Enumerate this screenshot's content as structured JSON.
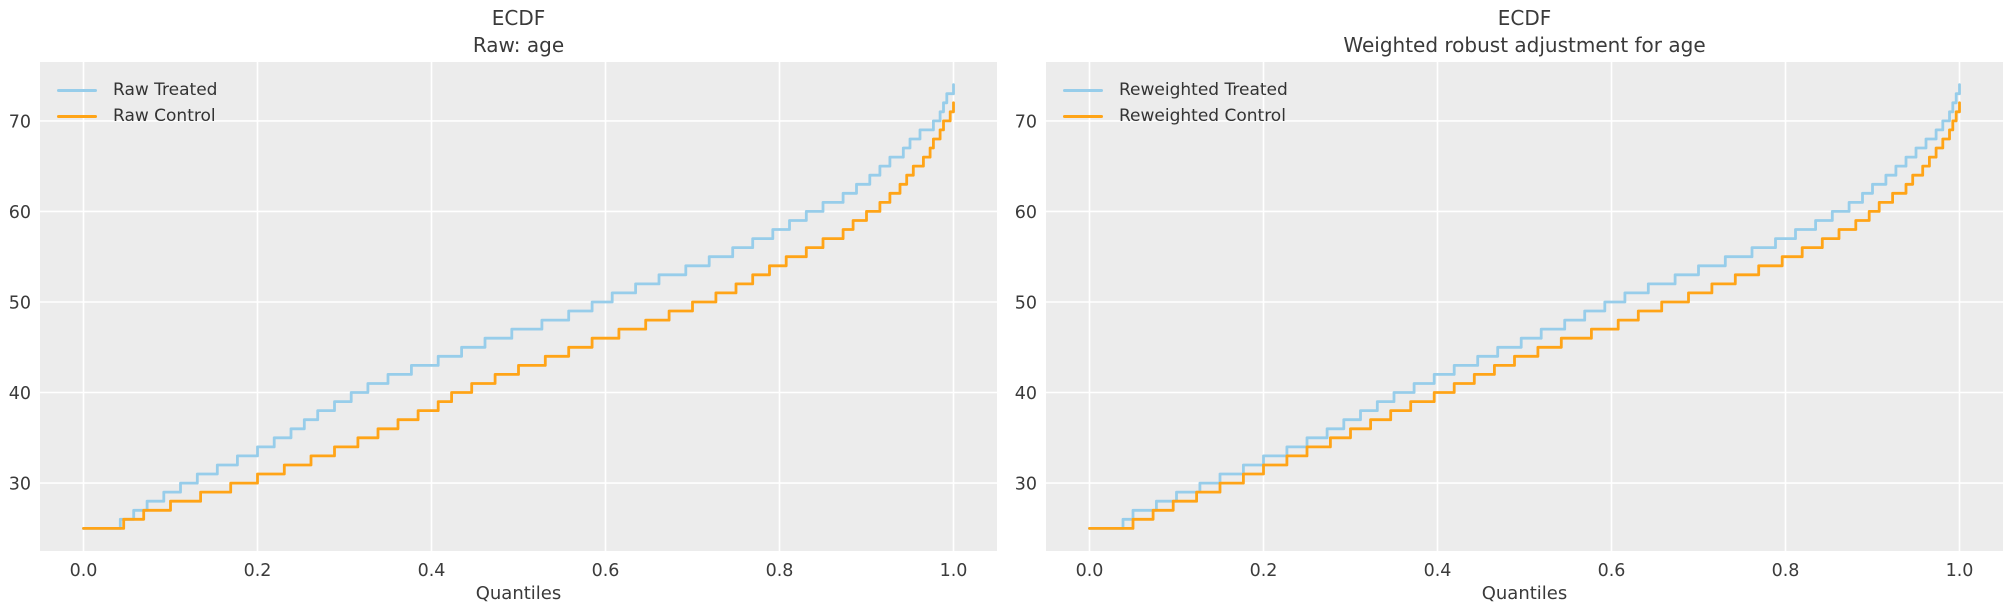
{
  "figure": {
    "background": "#ffffff",
    "plot_bg": "#ececec",
    "grid_color": "#ffffff",
    "text_color": "#3a3a3a"
  },
  "chart_data": [
    {
      "type": "line",
      "subtype": "ecdf-quantile-step",
      "title_line1": "ECDF",
      "title_line2": "Raw: age",
      "xlabel": "Quantiles",
      "ylabel": "",
      "x_ticks": [
        "0.0",
        "0.2",
        "0.4",
        "0.6",
        "0.8",
        "1.0"
      ],
      "x_tick_values": [
        0.0,
        0.2,
        0.4,
        0.6,
        0.8,
        1.0
      ],
      "y_ticks": [
        "30",
        "40",
        "50",
        "60",
        "70"
      ],
      "y_tick_values": [
        30,
        40,
        50,
        60,
        70
      ],
      "xlim": [
        -0.05,
        1.05
      ],
      "ylim": [
        22.5,
        76.5
      ],
      "grid": true,
      "legend_position": "upper-left",
      "plot_bg": "#ececec",
      "grid_color": "#ffffff",
      "series": [
        {
          "name": "Raw Treated",
          "color": "#97cdea",
          "points": [
            [
              0,
              25
            ],
            [
              0.03,
              25
            ],
            [
              0.05,
              26
            ],
            [
              0.07,
              27.5
            ],
            [
              0.1,
              29
            ],
            [
              0.13,
              30.5
            ],
            [
              0.16,
              31.8
            ],
            [
              0.2,
              33.5
            ],
            [
              0.24,
              35.8
            ],
            [
              0.28,
              38.2
            ],
            [
              0.32,
              40.3
            ],
            [
              0.36,
              42
            ],
            [
              0.4,
              43.3
            ],
            [
              0.44,
              44.8
            ],
            [
              0.48,
              46.2
            ],
            [
              0.52,
              47.4
            ],
            [
              0.56,
              48.6
            ],
            [
              0.6,
              50.2
            ],
            [
              0.64,
              51.8
            ],
            [
              0.68,
              53.2
            ],
            [
              0.72,
              54.6
            ],
            [
              0.76,
              56.2
            ],
            [
              0.8,
              58
            ],
            [
              0.84,
              60
            ],
            [
              0.87,
              61.5
            ],
            [
              0.9,
              63.3
            ],
            [
              0.92,
              65
            ],
            [
              0.94,
              66.5
            ],
            [
              0.96,
              68.5
            ],
            [
              0.98,
              70
            ],
            [
              0.99,
              72
            ],
            [
              1.0,
              74.3
            ]
          ]
        },
        {
          "name": "Raw Control",
          "color": "#ffa417",
          "points": [
            [
              0,
              25
            ],
            [
              0.04,
              25
            ],
            [
              0.05,
              26
            ],
            [
              0.09,
              27.2
            ],
            [
              0.13,
              28.4
            ],
            [
              0.17,
              29.6
            ],
            [
              0.2,
              30.6
            ],
            [
              0.24,
              31.8
            ],
            [
              0.28,
              33.2
            ],
            [
              0.32,
              34.8
            ],
            [
              0.36,
              36.5
            ],
            [
              0.4,
              38.2
            ],
            [
              0.43,
              40
            ],
            [
              0.48,
              41.8
            ],
            [
              0.52,
              43.2
            ],
            [
              0.56,
              44.6
            ],
            [
              0.6,
              46.1
            ],
            [
              0.64,
              47.4
            ],
            [
              0.68,
              48.8
            ],
            [
              0.72,
              50.3
            ],
            [
              0.76,
              52
            ],
            [
              0.8,
              54.2
            ],
            [
              0.84,
              56
            ],
            [
              0.87,
              57.5
            ],
            [
              0.9,
              59.7
            ],
            [
              0.92,
              61
            ],
            [
              0.94,
              63
            ],
            [
              0.96,
              65.2
            ],
            [
              0.98,
              68
            ],
            [
              0.99,
              69.8
            ],
            [
              1.0,
              72.2
            ]
          ]
        }
      ]
    },
    {
      "type": "line",
      "subtype": "ecdf-quantile-step",
      "title_line1": "ECDF",
      "title_line2": "Weighted robust adjustment for age",
      "xlabel": "Quantiles",
      "ylabel": "",
      "x_ticks": [
        "0.0",
        "0.2",
        "0.4",
        "0.6",
        "0.8",
        "1.0"
      ],
      "x_tick_values": [
        0.0,
        0.2,
        0.4,
        0.6,
        0.8,
        1.0
      ],
      "y_ticks": [
        "30",
        "40",
        "50",
        "60",
        "70"
      ],
      "y_tick_values": [
        30,
        40,
        50,
        60,
        70
      ],
      "xlim": [
        -0.05,
        1.05
      ],
      "ylim": [
        22.5,
        76.5
      ],
      "grid": true,
      "legend_position": "upper-left",
      "plot_bg": "#ececec",
      "grid_color": "#ffffff",
      "series": [
        {
          "name": "Reweighted Treated",
          "color": "#97cdea",
          "points": [
            [
              0,
              25
            ],
            [
              0.03,
              25
            ],
            [
              0.05,
              26.5
            ],
            [
              0.1,
              28.5
            ],
            [
              0.15,
              30.5
            ],
            [
              0.2,
              32.5
            ],
            [
              0.25,
              34.5
            ],
            [
              0.3,
              37
            ],
            [
              0.35,
              39.5
            ],
            [
              0.4,
              41.8
            ],
            [
              0.45,
              43.8
            ],
            [
              0.5,
              45.7
            ],
            [
              0.55,
              47.8
            ],
            [
              0.6,
              50
            ],
            [
              0.65,
              51.8
            ],
            [
              0.7,
              53.5
            ],
            [
              0.75,
              55.2
            ],
            [
              0.8,
              57
            ],
            [
              0.85,
              59.3
            ],
            [
              0.88,
              61
            ],
            [
              0.9,
              62.5
            ],
            [
              0.93,
              64.8
            ],
            [
              0.95,
              66.5
            ],
            [
              0.97,
              68.5
            ],
            [
              0.985,
              70
            ],
            [
              1.0,
              74.3
            ]
          ]
        },
        {
          "name": "Reweighted Control",
          "color": "#ffa417",
          "points": [
            [
              0,
              25
            ],
            [
              0.04,
              25
            ],
            [
              0.06,
              26
            ],
            [
              0.1,
              27.8
            ],
            [
              0.15,
              29.5
            ],
            [
              0.2,
              31.5
            ],
            [
              0.25,
              33.5
            ],
            [
              0.3,
              35.5
            ],
            [
              0.35,
              37.8
            ],
            [
              0.4,
              39.8
            ],
            [
              0.45,
              42
            ],
            [
              0.5,
              44
            ],
            [
              0.55,
              45.8
            ],
            [
              0.6,
              47.3
            ],
            [
              0.65,
              49.3
            ],
            [
              0.7,
              51
            ],
            [
              0.75,
              52.8
            ],
            [
              0.8,
              54.8
            ],
            [
              0.85,
              57
            ],
            [
              0.88,
              58.5
            ],
            [
              0.9,
              60
            ],
            [
              0.93,
              62
            ],
            [
              0.95,
              64
            ],
            [
              0.97,
              66
            ],
            [
              0.985,
              68.5
            ],
            [
              1.0,
              72.2
            ]
          ]
        }
      ]
    }
  ]
}
